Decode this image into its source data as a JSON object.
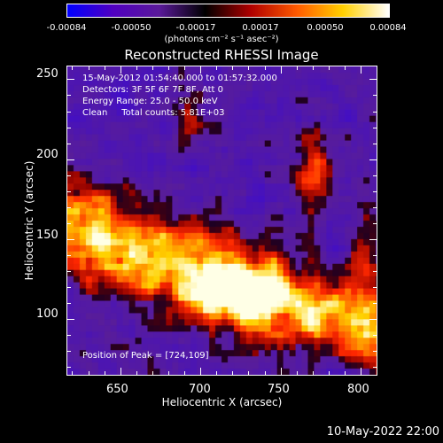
{
  "colorbar": {
    "tick_labels": [
      "-0.00084",
      "-0.00050",
      "-0.00017",
      "0.00017",
      "0.00050",
      "0.00084"
    ],
    "units": "(photons cm⁻² s⁻¹ asec⁻²)",
    "range": [
      -0.00084,
      0.00084
    ],
    "colors": [
      "#0000ff",
      "#5000c0",
      "#5a1a9a",
      "#000000",
      "#b00000",
      "#ff5a00",
      "#ffd000",
      "#ffffff"
    ]
  },
  "title": "Reconstructed RHESSI Image",
  "info": {
    "time_range": "15-May-2012 01:54:40.000 to 01:57:32.000",
    "detectors": "Detectors: 3F 5F 6F 7F 8F, Att 0",
    "energy_range": "Energy Range: 25.0 - 50.0 keV",
    "algorithm": "Clean     Total counts: 5.81E+03",
    "peak": "Position of Peak = [724,109]"
  },
  "axes": {
    "xlabel": "Heliocentric X (arcsec)",
    "ylabel": "Heliocentric Y (arcsec)",
    "xticks": [
      "650",
      "700",
      "750",
      "800"
    ],
    "yticks": [
      "100",
      "150",
      "200",
      "250"
    ],
    "xlim": [
      617,
      811
    ],
    "ylim": [
      64,
      258
    ]
  },
  "timestamp": "10-May-2022 22:00"
}
